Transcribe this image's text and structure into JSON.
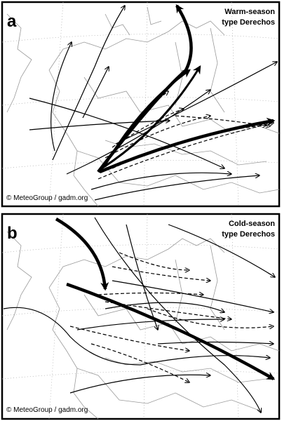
{
  "panels": [
    {
      "label": "a",
      "title_lines": [
        "Warm-season",
        "type Derechos"
      ],
      "credit": "© MeteoGroup / gadm.org"
    },
    {
      "label": "b",
      "title_lines": [
        "Cold-season",
        "type Derechos"
      ],
      "credit": "© MeteoGroup / gadm.org"
    }
  ]
}
